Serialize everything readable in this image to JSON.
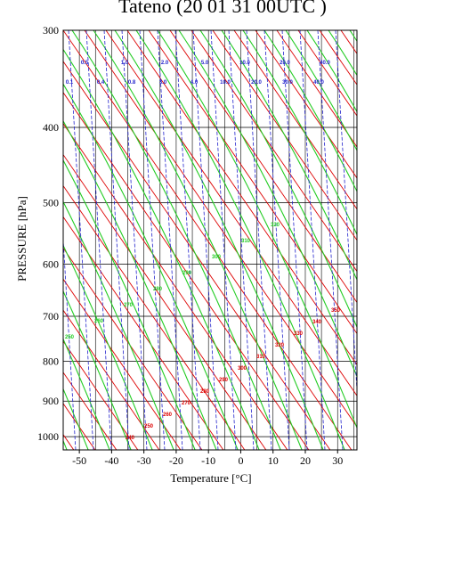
{
  "chart_data": {
    "type": "line",
    "title": "Tateno (20 01 31 00UTC )",
    "xlabel": "Temperature  [°C]",
    "ylabel": "PRESSURE [hPa]",
    "xlim": [
      -55,
      36
    ],
    "ylim": [
      1040,
      300
    ],
    "y_scale": "log",
    "grid": true,
    "x_ticks": [
      -50,
      -40,
      -30,
      -20,
      -10,
      0,
      10,
      20,
      30
    ],
    "y_ticks": [
      300,
      400,
      500,
      600,
      700,
      800,
      900,
      1000
    ],
    "colors": {
      "isotherm": "#000000",
      "isobar": "#000000",
      "dry_adiabat": "#dd0000",
      "moist_adiabat": "#22cc22",
      "mixing_ratio": "#2222cc"
    },
    "mixing_ratio_labels_row1": [
      "0.5",
      "1.0",
      "2.0",
      "5.0",
      "10.0",
      "20.0",
      "40.0"
    ],
    "mixing_ratio_labels_row2": [
      "0.1",
      "0.4",
      "0.8",
      "3.0",
      "4.0",
      "10.0",
      "20.0",
      "30.0",
      "40.0"
    ],
    "dry_adiabat_labels": [
      "240",
      "250",
      "260",
      "270",
      "280",
      "290",
      "300",
      "310",
      "320",
      "330",
      "340",
      "350"
    ],
    "moist_adiabat_labels": [
      "250",
      "260",
      "270",
      "280",
      "290",
      "300",
      "310",
      "320"
    ]
  }
}
